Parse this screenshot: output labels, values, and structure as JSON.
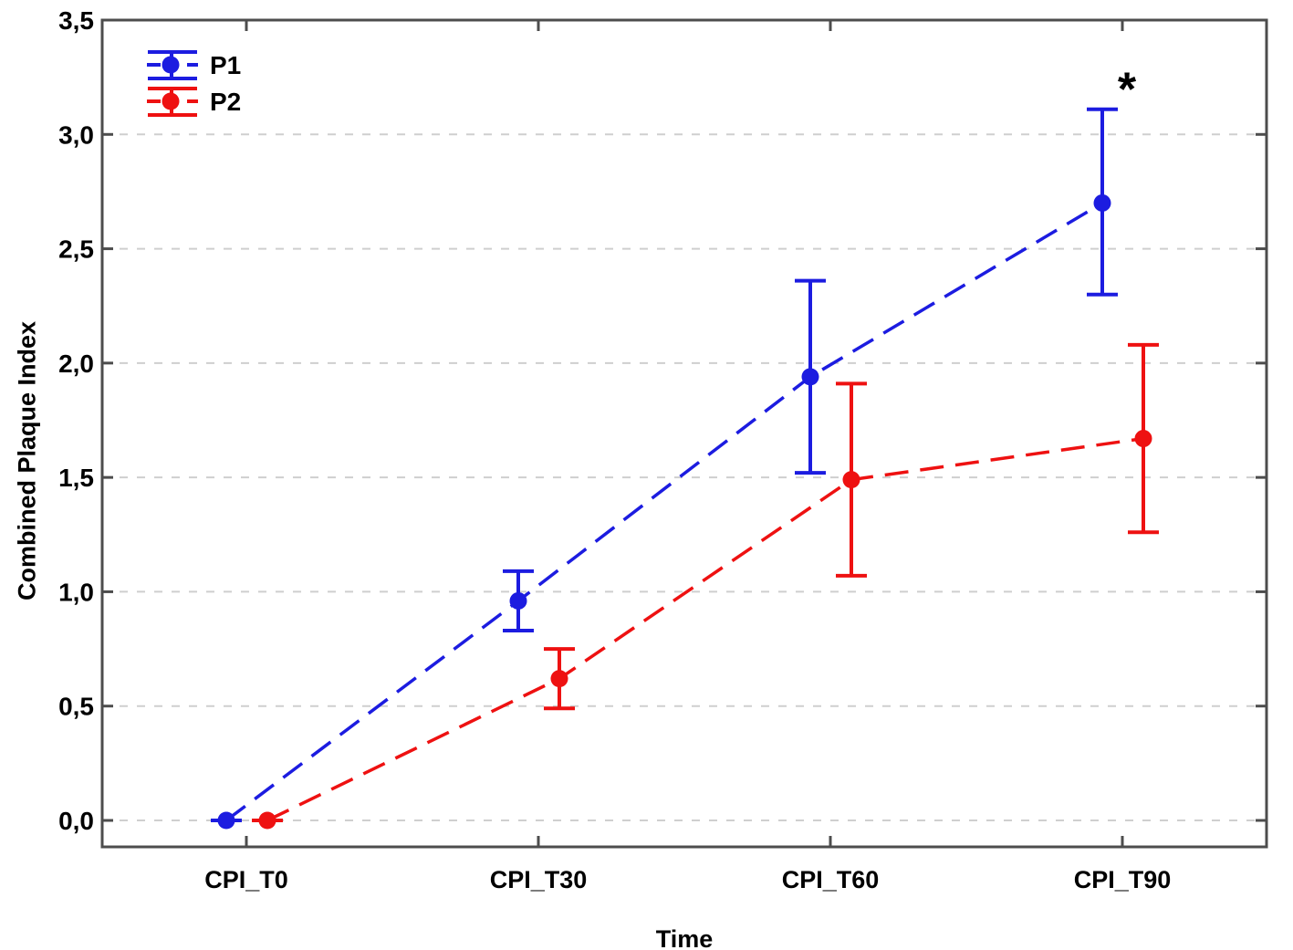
{
  "chart_data": {
    "type": "line",
    "title": "",
    "xlabel": "Time",
    "ylabel": "Combined Plaque Index",
    "categories": [
      "CPI_T0",
      "CPI_T30",
      "CPI_T60",
      "CPI_T90"
    ],
    "ytick_labels": [
      "0,0",
      "0,5",
      "1,0",
      "1,5",
      "2,0",
      "2,5",
      "3,0",
      "3,5"
    ],
    "yticks": [
      0,
      0.5,
      1.0,
      1.5,
      2.0,
      2.5,
      3.0,
      3.5
    ],
    "ylim": [
      -0.12,
      3.5
    ],
    "grid": "horizontal-dashed",
    "legend_position": "top-left",
    "line_style": "long-dash",
    "marker": "filled-circle-with-error-bars",
    "series": [
      {
        "name": "P1",
        "color": "#1c1ce0",
        "values": [
          0.0,
          0.96,
          1.94,
          2.7
        ],
        "ci_low": [
          0.0,
          0.83,
          1.52,
          2.3
        ],
        "ci_high": [
          0.0,
          1.09,
          2.36,
          3.11
        ]
      },
      {
        "name": "P2",
        "color": "#ee1111",
        "values": [
          0.0,
          0.62,
          1.49,
          1.67
        ],
        "ci_low": [
          0.0,
          0.49,
          1.07,
          1.26
        ],
        "ci_high": [
          0.0,
          0.75,
          1.91,
          2.08
        ]
      }
    ],
    "annotation": {
      "text": "*",
      "series": "P1",
      "category": "CPI_T90"
    },
    "colors": {
      "frame": "#4d4d4d",
      "gridline": "#cfcfcf",
      "text": "#000000"
    }
  }
}
